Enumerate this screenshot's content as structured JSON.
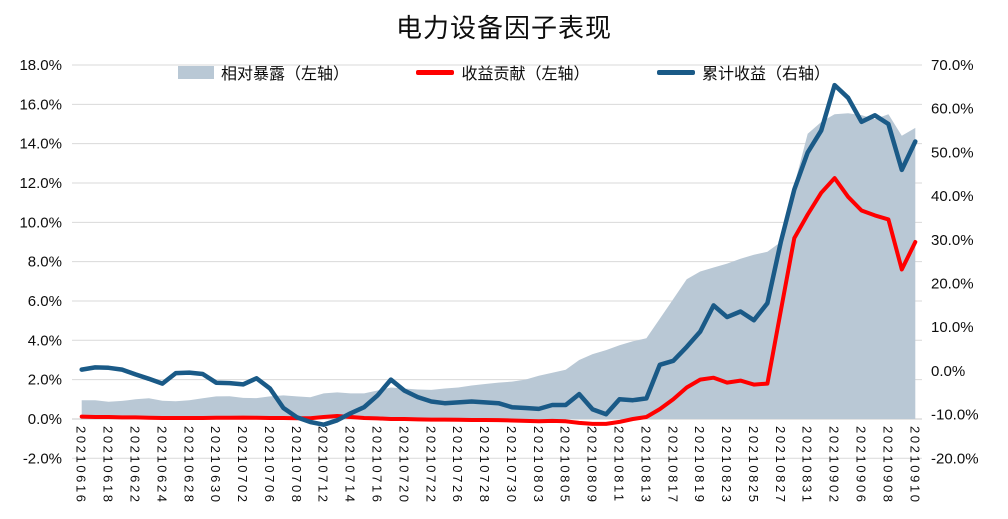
{
  "chart_data": {
    "type": "combo-area-line",
    "title": "电力设备因子表现",
    "background": "#FFFFFF",
    "grid_color": "#D9D9D9",
    "axis_line_color": "#C9C9C9",
    "legend_position": "top",
    "legend": [
      {
        "label": "相对暴露（左轴）",
        "marker": "area-swatch"
      },
      {
        "label": "收益贡献（左轴）",
        "marker": "line-swatch"
      },
      {
        "label": "累计收益（右轴）",
        "marker": "line-swatch"
      }
    ],
    "left_axis": {
      "min": -2,
      "max": 18,
      "step": 2,
      "tick_labels": [
        "18.0%",
        "16.0%",
        "14.0%",
        "12.0%",
        "10.0%",
        "8.0%",
        "6.0%",
        "4.0%",
        "2.0%",
        "0.0%",
        "-2.0%"
      ]
    },
    "right_axis": {
      "min": -20,
      "max": 70,
      "step": 10,
      "tick_labels": [
        "70.0%",
        "60.0%",
        "50.0%",
        "40.0%",
        "30.0%",
        "20.0%",
        "10.0%",
        "0.0%",
        "-10.0%",
        "-20.0%"
      ]
    },
    "x": {
      "label_every": 2,
      "dates": [
        "20210616",
        "20210617",
        "20210618",
        "20210621",
        "20210622",
        "20210623",
        "20210624",
        "20210625",
        "20210628",
        "20210629",
        "20210630",
        "20210701",
        "20210702",
        "20210705",
        "20210706",
        "20210707",
        "20210708",
        "20210709",
        "20210712",
        "20210713",
        "20210714",
        "20210715",
        "20210716",
        "20210719",
        "20210720",
        "20210721",
        "20210722",
        "20210723",
        "20210726",
        "20210727",
        "20210728",
        "20210729",
        "20210730",
        "20210802",
        "20210803",
        "20210804",
        "20210805",
        "20210806",
        "20210809",
        "20210810",
        "20210811",
        "20210812",
        "20210813",
        "20210816",
        "20210817",
        "20210818",
        "20210819",
        "20210820",
        "20210823",
        "20210824",
        "20210825",
        "20210826",
        "20210827",
        "20210830",
        "20210831",
        "20210901",
        "20210902",
        "20210903",
        "20210906",
        "20210907",
        "20210908",
        "20210909",
        "20210910"
      ]
    },
    "series": [
      {
        "name": "相对暴露（左轴）",
        "type": "area",
        "axis": "left",
        "color": "#B9C8D5",
        "unit": "%",
        "values": [
          0.95,
          0.95,
          0.88,
          0.92,
          1.0,
          1.05,
          0.93,
          0.9,
          0.95,
          1.05,
          1.15,
          1.16,
          1.07,
          1.06,
          1.15,
          1.2,
          1.15,
          1.1,
          1.3,
          1.35,
          1.3,
          1.3,
          1.45,
          1.6,
          1.55,
          1.5,
          1.48,
          1.55,
          1.6,
          1.7,
          1.78,
          1.85,
          1.9,
          2.0,
          2.2,
          2.35,
          2.5,
          3.0,
          3.3,
          3.5,
          3.75,
          3.95,
          4.1,
          5.1,
          6.1,
          7.1,
          7.5,
          7.7,
          7.9,
          8.15,
          8.35,
          8.5,
          9.0,
          11.9,
          14.5,
          15.1,
          15.5,
          15.55,
          15.45,
          15.25,
          15.5,
          14.4,
          14.8
        ]
      },
      {
        "name": "收益贡献（左轴）",
        "type": "line",
        "axis": "left",
        "color": "#FF0000",
        "stroke_width": 4,
        "unit": "%",
        "values": [
          0.12,
          0.1,
          0.1,
          0.08,
          0.08,
          0.06,
          0.05,
          0.05,
          0.05,
          0.05,
          0.06,
          0.06,
          0.07,
          0.06,
          0.05,
          0.05,
          0.04,
          0.04,
          0.1,
          0.15,
          0.1,
          0.05,
          0.03,
          0.0,
          0.0,
          -0.02,
          -0.03,
          -0.03,
          -0.04,
          -0.05,
          -0.05,
          -0.06,
          -0.08,
          -0.1,
          -0.12,
          -0.1,
          -0.12,
          -0.2,
          -0.25,
          -0.25,
          -0.15,
          0.0,
          0.1,
          0.5,
          1.0,
          1.6,
          2.0,
          2.1,
          1.85,
          1.95,
          1.75,
          1.8,
          5.5,
          9.2,
          10.4,
          11.5,
          12.25,
          11.3,
          10.6,
          10.35,
          10.15,
          7.6,
          9.0
        ]
      },
      {
        "name": "累计收益（右轴）",
        "type": "line",
        "axis": "right",
        "color": "#1A5A87",
        "stroke_width": 4.5,
        "unit": "%",
        "values": [
          0.3,
          0.8,
          0.7,
          0.3,
          -0.8,
          -1.8,
          -2.9,
          -0.5,
          -0.4,
          -0.7,
          -2.7,
          -2.8,
          -3.1,
          -1.7,
          -4.0,
          -8.5,
          -10.6,
          -11.7,
          -12.3,
          -11.3,
          -9.7,
          -8.3,
          -5.6,
          -2.0,
          -4.5,
          -6.0,
          -7.0,
          -7.4,
          -7.2,
          -7.0,
          -7.2,
          -7.4,
          -8.3,
          -8.5,
          -8.7,
          -7.8,
          -7.8,
          -5.3,
          -8.8,
          -9.9,
          -6.5,
          -6.7,
          -6.3,
          1.4,
          2.3,
          5.5,
          9.0,
          15.0,
          12.3,
          13.6,
          11.6,
          15.5,
          29.5,
          41.5,
          50.0,
          55.0,
          65.4,
          62.5,
          57.0,
          58.5,
          56.5,
          46.0,
          52.5
        ]
      }
    ]
  }
}
